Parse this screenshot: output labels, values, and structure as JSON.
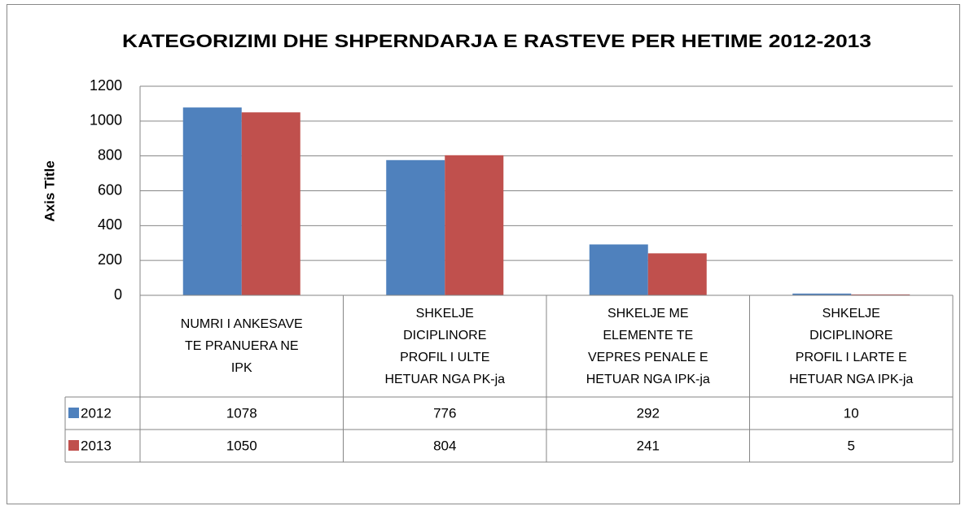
{
  "chart_data": {
    "type": "bar",
    "title": "KATEGORIZIMI DHE SHPERNDARJA E RASTEVE PER HETIME 2012-2013",
    "y_label": "Axis Title",
    "categories": [
      "NUMRI I ANKESAVE\nTE PRANUERA  NE\nIPK",
      "SHKELJE\nDICIPLINORE\nPROFIL I ULTE\nHETUAR NGA PK-ja",
      "SHKELJE ME\nELEMENTE  TE\nVEPRES PENALE E\nHETUAR NGA IPK-ja",
      "SHKELJE\nDICIPLINORE\nPROFIL I LARTE E\nHETUAR NGA IPK-ja"
    ],
    "series": [
      {
        "name": "2012",
        "color": "#4f81bd",
        "values": [
          1078,
          776,
          292,
          10
        ]
      },
      {
        "name": "2013",
        "color": "#c0504d",
        "values": [
          1050,
          804,
          241,
          5
        ]
      }
    ],
    "ylim": [
      0,
      1200
    ],
    "yticks": [
      0,
      200,
      400,
      600,
      800,
      1000,
      1200
    ],
    "grid": true,
    "data_table": true
  }
}
